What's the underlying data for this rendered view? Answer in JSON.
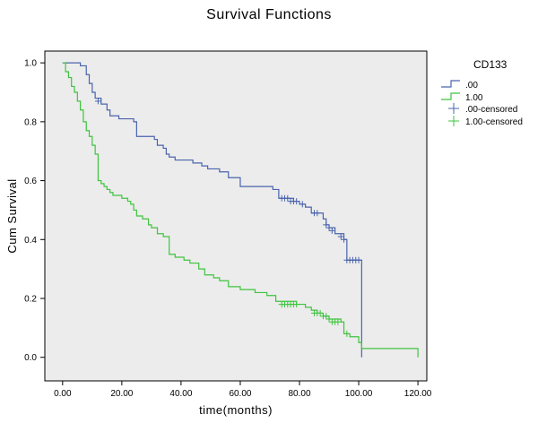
{
  "chart_data": {
    "type": "line",
    "title": "Survival Functions",
    "xlabel": "time(months)",
    "ylabel": "Cum Survival",
    "xlim": [
      -6,
      123
    ],
    "ylim": [
      -0.08,
      1.04
    ],
    "x_ticks": [
      "0.00",
      "20.00",
      "40.00",
      "60.00",
      "80.00",
      "100.00",
      "120.00"
    ],
    "y_ticks": [
      "0.0",
      "0.2",
      "0.4",
      "0.6",
      "0.8",
      "1.0"
    ],
    "legend_title": "CD133",
    "legend_position": "right",
    "plot_background": "#ececec",
    "series": [
      {
        "name": ".00",
        "color": "#4a64ad",
        "steps": [
          [
            0,
            1.0
          ],
          [
            6,
            0.99
          ],
          [
            8,
            0.96
          ],
          [
            9,
            0.93
          ],
          [
            10,
            0.9
          ],
          [
            11,
            0.88
          ],
          [
            13,
            0.86
          ],
          [
            15,
            0.84
          ],
          [
            16,
            0.82
          ],
          [
            19,
            0.81
          ],
          [
            24,
            0.8
          ],
          [
            25,
            0.75
          ],
          [
            31,
            0.74
          ],
          [
            32,
            0.72
          ],
          [
            34,
            0.71
          ],
          [
            35,
            0.69
          ],
          [
            36,
            0.68
          ],
          [
            38,
            0.67
          ],
          [
            44,
            0.66
          ],
          [
            47,
            0.65
          ],
          [
            49,
            0.64
          ],
          [
            53,
            0.63
          ],
          [
            56,
            0.61
          ],
          [
            60,
            0.58
          ],
          [
            71,
            0.57
          ],
          [
            73,
            0.54
          ],
          [
            78,
            0.53
          ],
          [
            80,
            0.52
          ],
          [
            82,
            0.51
          ],
          [
            84,
            0.49
          ],
          [
            88,
            0.47
          ],
          [
            89,
            0.45
          ],
          [
            90,
            0.44
          ],
          [
            92,
            0.42
          ],
          [
            95,
            0.4
          ],
          [
            96,
            0.33
          ],
          [
            101,
            0.0
          ]
        ],
        "censored": [
          [
            12,
            0.87
          ],
          [
            74,
            0.54
          ],
          [
            75,
            0.54
          ],
          [
            76,
            0.54
          ],
          [
            77,
            0.53
          ],
          [
            78,
            0.53
          ],
          [
            79,
            0.53
          ],
          [
            81,
            0.52
          ],
          [
            85,
            0.49
          ],
          [
            86,
            0.49
          ],
          [
            89,
            0.45
          ],
          [
            90,
            0.44
          ],
          [
            91,
            0.43
          ],
          [
            94,
            0.41
          ],
          [
            95,
            0.4
          ],
          [
            96,
            0.33
          ],
          [
            97,
            0.33
          ],
          [
            98,
            0.33
          ],
          [
            99,
            0.33
          ],
          [
            100,
            0.33
          ]
        ]
      },
      {
        "name": "1.00",
        "color": "#3ec43e",
        "steps": [
          [
            0,
            1.0
          ],
          [
            1,
            0.97
          ],
          [
            2,
            0.95
          ],
          [
            3,
            0.92
          ],
          [
            4,
            0.9
          ],
          [
            5,
            0.87
          ],
          [
            6,
            0.84
          ],
          [
            7,
            0.8
          ],
          [
            8,
            0.77
          ],
          [
            9,
            0.75
          ],
          [
            10,
            0.72
          ],
          [
            11,
            0.69
          ],
          [
            12,
            0.6
          ],
          [
            13,
            0.59
          ],
          [
            14,
            0.58
          ],
          [
            15,
            0.57
          ],
          [
            16,
            0.56
          ],
          [
            17,
            0.55
          ],
          [
            20,
            0.54
          ],
          [
            22,
            0.53
          ],
          [
            23,
            0.52
          ],
          [
            24,
            0.5
          ],
          [
            25,
            0.48
          ],
          [
            27,
            0.47
          ],
          [
            29,
            0.45
          ],
          [
            30,
            0.44
          ],
          [
            32,
            0.42
          ],
          [
            34,
            0.41
          ],
          [
            36,
            0.35
          ],
          [
            38,
            0.34
          ],
          [
            41,
            0.33
          ],
          [
            43,
            0.32
          ],
          [
            46,
            0.3
          ],
          [
            48,
            0.28
          ],
          [
            51,
            0.27
          ],
          [
            53,
            0.26
          ],
          [
            56,
            0.24
          ],
          [
            60,
            0.23
          ],
          [
            65,
            0.22
          ],
          [
            69,
            0.21
          ],
          [
            72,
            0.19
          ],
          [
            79,
            0.18
          ],
          [
            82,
            0.17
          ],
          [
            84,
            0.16
          ],
          [
            86,
            0.15
          ],
          [
            88,
            0.14
          ],
          [
            90,
            0.13
          ],
          [
            94,
            0.12
          ],
          [
            95,
            0.08
          ],
          [
            97,
            0.07
          ],
          [
            100,
            0.05
          ],
          [
            101,
            0.03
          ],
          [
            120,
            0.0
          ]
        ],
        "censored": [
          [
            74,
            0.18
          ],
          [
            75,
            0.18
          ],
          [
            76,
            0.18
          ],
          [
            77,
            0.18
          ],
          [
            78,
            0.18
          ],
          [
            79,
            0.18
          ],
          [
            85,
            0.15
          ],
          [
            86,
            0.15
          ],
          [
            87,
            0.15
          ],
          [
            88,
            0.14
          ],
          [
            89,
            0.14
          ],
          [
            90,
            0.13
          ],
          [
            91,
            0.12
          ],
          [
            92,
            0.12
          ],
          [
            93,
            0.12
          ],
          [
            96,
            0.08
          ]
        ]
      }
    ]
  },
  "legend": {
    "title": "CD133",
    "items": [
      {
        "label": ".00",
        "kind": "line",
        "color": "#4a64ad"
      },
      {
        "label": "1.00",
        "kind": "line",
        "color": "#3ec43e"
      },
      {
        "label": ".00-censored",
        "kind": "plus",
        "color": "#4a64ad"
      },
      {
        "label": "1.00-censored",
        "kind": "plus",
        "color": "#3ec43e"
      }
    ]
  }
}
